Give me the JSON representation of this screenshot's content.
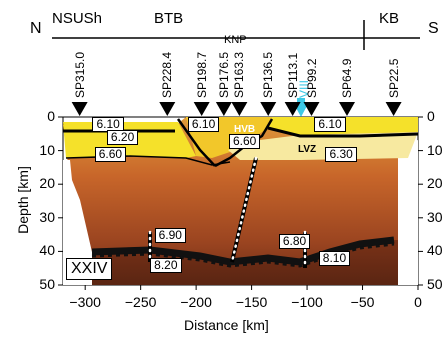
{
  "title_bar": {
    "north": "N",
    "south": "S",
    "region_left": "NSUSh",
    "region_mid": "BTB",
    "region_right": "KB",
    "knp": "KNP"
  },
  "shotpoints": [
    {
      "label": "SP315.0",
      "x": -305
    },
    {
      "label": "SP228.4",
      "x": -226
    },
    {
      "label": "SP198.7",
      "x": -195
    },
    {
      "label": "SP176.5",
      "x": -175
    },
    {
      "label": "SP163.3",
      "x": -161
    },
    {
      "label": "SP136.5",
      "x": -135
    },
    {
      "label": "SP113.1",
      "x": -113
    },
    {
      "label": "VIII",
      "x": -103
    },
    {
      "label": "SP99.2",
      "x": -96
    },
    {
      "label": "SP64.9",
      "x": -64
    },
    {
      "label": "SP22.5",
      "x": -22
    }
  ],
  "velocities": [
    {
      "value": "6.10",
      "x": -279,
      "depth": 2
    },
    {
      "value": "6.20",
      "x": -266,
      "depth": 6
    },
    {
      "value": "6.10",
      "x": -193,
      "depth": 2
    },
    {
      "value": "6.60",
      "x": -156,
      "depth": 7
    },
    {
      "value": "6.10",
      "x": -79,
      "depth": 2
    },
    {
      "value": "6.30",
      "x": -69,
      "depth": 11
    },
    {
      "value": "6.60",
      "x": -277,
      "depth": 11
    },
    {
      "value": "6.90",
      "x": -223,
      "depth": 35
    },
    {
      "value": "6.80",
      "x": -111,
      "depth": 37
    },
    {
      "value": "8.20",
      "x": -227,
      "depth": 44
    },
    {
      "value": "8.10",
      "x": -75,
      "depth": 42
    }
  ],
  "zone_labels": {
    "hvb": "HVB",
    "lvz": "LVZ"
  },
  "profile_label": "XXIV",
  "axes": {
    "xlabel": "Distance  [km]",
    "ylabel": "Depth  [km]",
    "xticks": [
      "−300",
      "−250",
      "−200",
      "−150",
      "−100",
      "−50",
      "0"
    ],
    "yticks": [
      "0",
      "10",
      "20",
      "30",
      "40",
      "50"
    ],
    "xlim": [
      -320,
      0
    ],
    "ylim": [
      0,
      50
    ]
  },
  "colors": {
    "yellow_top": "#f5e12a",
    "pale_lvz": "#f7e9a0",
    "orange_mid": "#d8782c",
    "brown_deep": "#7a3218",
    "cyan_marker": "#3cc9e6"
  }
}
